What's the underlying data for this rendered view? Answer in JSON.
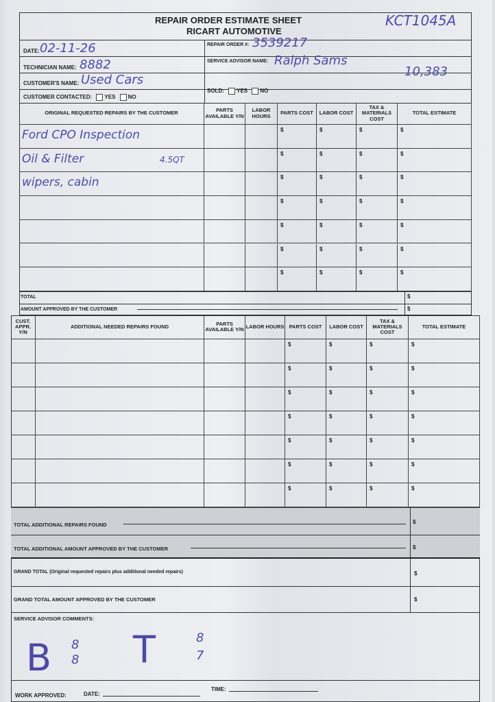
{
  "header": {
    "title": "REPAIR ORDER ESTIMATE SHEET",
    "company": "RICART AUTOMOTIVE",
    "stock_number": "KCT1045A"
  },
  "fields": {
    "date_label": "DATE:",
    "date_value": "02-11-26",
    "repair_order_label": "REPAIR ORDER #:",
    "repair_order_value": "3539217",
    "technician_label": "TECHNICIAN NAME:",
    "technician_value": "8882",
    "service_advisor_label": "SERVICE ADVISOR NAME:",
    "service_advisor_value": "Ralph Sams",
    "customer_label": "CUSTOMER'S NAME:",
    "customer_value": "Used Cars",
    "mileage_value": "10,383",
    "contacted_label": "CUSTOMER CONTACTED:",
    "sold_label": "SOLD:",
    "yes": "YES",
    "no": "NO"
  },
  "original": {
    "headers": [
      "ORIGINAL REQUESTED REPAIRS BY THE CUSTOMER",
      "PARTS AVAILABLE Y/N",
      "LABOR HOURS",
      "PARTS COST",
      "LABOR COST",
      "TAX & MATERIALS COST",
      "TOTAL ESTIMATE"
    ],
    "rows": [
      {
        "desc": "Ford CPO Inspection",
        "note": ""
      },
      {
        "desc": "Oil & Filter",
        "note": "4.5QT"
      },
      {
        "desc": "wipers, cabin",
        "note": ""
      },
      {
        "desc": "",
        "note": ""
      },
      {
        "desc": "",
        "note": ""
      },
      {
        "desc": "",
        "note": ""
      },
      {
        "desc": "",
        "note": ""
      }
    ],
    "currency": "$",
    "total_label": "TOTAL",
    "approved_label": "AMOUNT APPROVED BY THE CUSTOMER"
  },
  "additional": {
    "headers": [
      "CUST. APPR. Y/N",
      "ADDITIONAL NEEDED REPAIRS FOUND",
      "PARTS AVAILABLE Y/N",
      "LABOR HOURS",
      "PARTS COST",
      "LABOR COST",
      "TAX & MATERIALS COST",
      "TOTAL ESTIMATE"
    ],
    "row_count": 7,
    "total_found_label": "TOTAL ADDITIONAL REPAIRS FOUND",
    "total_approved_label": "TOTAL ADDITIONAL AMOUNT APPROVED BY THE CUSTOMER"
  },
  "grand": {
    "total_label": "GRAND TOTAL (Original requested repairs plus additional needed repairs)",
    "approved_label": "GRAND TOTAL AMOUNT APPROVED BY THE CUSTOMER"
  },
  "comments": {
    "label": "SERVICE ADVISOR COMMENTS:",
    "b_letter": "B",
    "b_top": "8",
    "b_bottom": "8",
    "t_letter": "T",
    "t_top": "8",
    "t_bottom": "7"
  },
  "footer": {
    "work_approved": "WORK APPROVED:",
    "date": "DATE:",
    "time": "TIME:"
  },
  "colors": {
    "ink": "#4b4aa6",
    "shaded": "#cfd0d6"
  }
}
